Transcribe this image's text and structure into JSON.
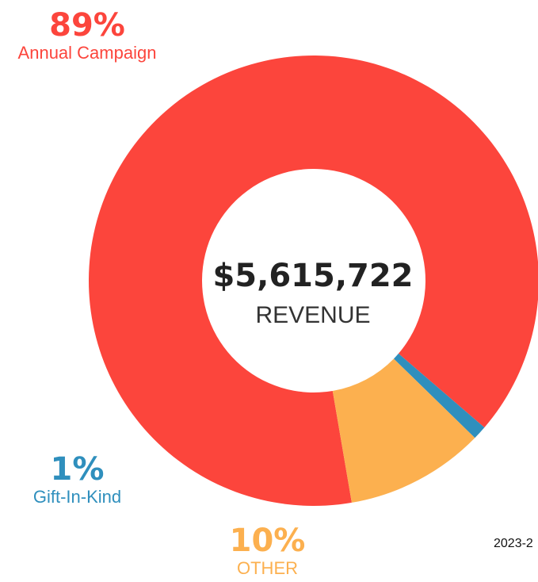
{
  "chart_data": {
    "type": "pie",
    "donut": true,
    "center": {
      "value": "$5,615,722",
      "caption": "REVENUE"
    },
    "footnote": "2023-2",
    "slices": [
      {
        "label": "Annual Campaign",
        "percent_label": "89%",
        "value": 89,
        "color": "#fc453c"
      },
      {
        "label": "Gift-In-Kind",
        "percent_label": "1%",
        "value": 1,
        "color": "#2f8fbd"
      },
      {
        "label": "OTHER",
        "percent_label": "10%",
        "value": 10,
        "color": "#fcb04f"
      }
    ]
  }
}
